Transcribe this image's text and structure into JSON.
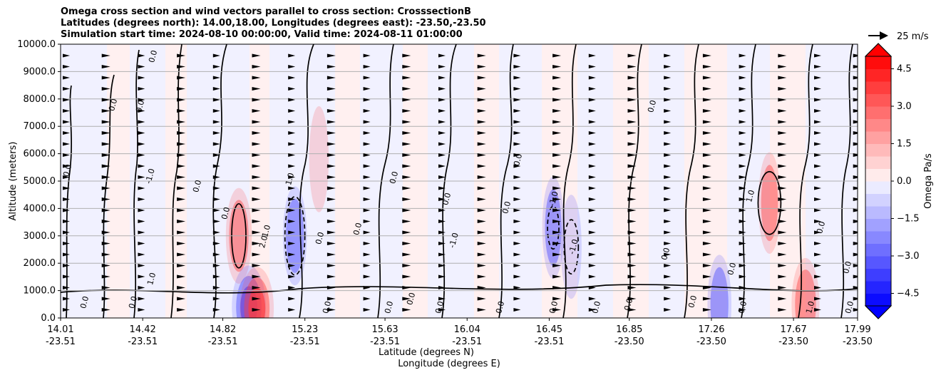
{
  "chart_data": {
    "type": "heatmap",
    "title_lines": [
      "Omega cross section and wind vectors parallel to cross section: CrosssectionB",
      "Latitudes (degrees north): 14.00,18.00, Longitudes (degrees east): -23.50,-23.50",
      "Simulation start time: 2024-08-10 00:00:00, Valid time: 2024-08-11 01:00:00"
    ],
    "ylabel": "Altitude (meters)",
    "xlabel_lines": [
      "Latitude (degrees N)",
      "Longitude (degrees E)"
    ],
    "ylim": [
      0,
      10000
    ],
    "y_ticks": [
      "0.0",
      "1000.0",
      "2000.0",
      "3000.0",
      "4000.0",
      "5000.0",
      "6000.0",
      "7000.0",
      "8000.0",
      "9000.0",
      "10000.0"
    ],
    "x_ticks": [
      {
        "lat": "14.01",
        "lon": "-23.51"
      },
      {
        "lat": "14.42",
        "lon": "-23.51"
      },
      {
        "lat": "14.82",
        "lon": "-23.51"
      },
      {
        "lat": "15.23",
        "lon": "-23.51"
      },
      {
        "lat": "15.63",
        "lon": "-23.51"
      },
      {
        "lat": "16.04",
        "lon": "-23.51"
      },
      {
        "lat": "16.45",
        "lon": "-23.51"
      },
      {
        "lat": "16.85",
        "lon": "-23.50"
      },
      {
        "lat": "17.26",
        "lon": "-23.50"
      },
      {
        "lat": "17.67",
        "lon": "-23.50"
      },
      {
        "lat": "17.99",
        "lon": "-23.50"
      }
    ],
    "grid": "horizontal",
    "colorbar": {
      "label": "Omega Pa/s",
      "range": [
        -5,
        5
      ],
      "ticks": [
        "4.5",
        "3.0",
        "1.5",
        "0.0",
        "−1.5",
        "−3.0",
        "−4.5"
      ],
      "extend": "both",
      "colors": {
        "negative": "#0000ff",
        "positive": "#ff0000",
        "neutral": "#ffffff"
      }
    },
    "quiver_key": {
      "label": "25 m/s"
    },
    "contour_labels": [
      "0.0",
      "1.0",
      "-1.0",
      "2.0"
    ],
    "features": [
      {
        "sign": "positive",
        "lat": 14.9,
        "alt": 3000,
        "peak": 2.5
      },
      {
        "sign": "negative",
        "lat": 15.18,
        "alt": 3000,
        "peak": -2.0
      },
      {
        "sign": "negative",
        "lat": 16.47,
        "alt": 3300,
        "peak": -1.5
      },
      {
        "sign": "negative",
        "lat": 16.56,
        "alt": 2600,
        "peak": -1.2
      },
      {
        "sign": "positive",
        "lat": 17.55,
        "alt": 4200,
        "peak": 1.6
      },
      {
        "sign": "positive",
        "lat": 15.3,
        "alt": 5800,
        "peak": 0.9
      },
      {
        "sign": "negative",
        "lat": 14.95,
        "alt": 400,
        "peak": -4.5
      },
      {
        "sign": "positive",
        "lat": 14.99,
        "alt": 350,
        "peak": 4.5
      },
      {
        "sign": "positive",
        "lat": 17.73,
        "alt": 500,
        "peak": 3.0
      },
      {
        "sign": "negative",
        "lat": 17.3,
        "alt": 500,
        "peak": -2.0
      }
    ]
  }
}
